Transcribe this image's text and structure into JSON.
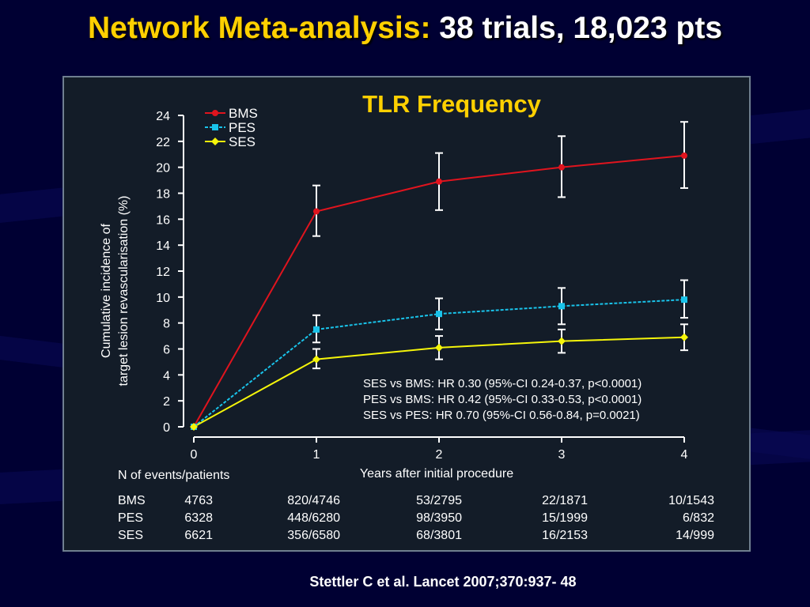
{
  "slide": {
    "title_main": "Network Meta-analysis:",
    "title_rest": "38 trials, 18,023 pts",
    "citation": "Stettler C et al. Lancet 2007;370:937- 48"
  },
  "colors": {
    "background": "#000033",
    "panel": "#131c28",
    "title_yellow": "#ffd000",
    "bms": "#e0141e",
    "pes": "#19c3ea",
    "ses": "#f5f50a",
    "error_bar": "#ffffff"
  },
  "chart_data": {
    "type": "line",
    "title": "TLR Frequency",
    "ylabel_line1": "Cumulative incidence of",
    "ylabel_line2": "target lesion revascularisation (%)",
    "xlabel": "Years after initial procedure",
    "x": [
      0,
      1,
      2,
      3,
      4
    ],
    "xticks": [
      "0",
      "1",
      "2",
      "3",
      "4"
    ],
    "yticks": [
      "0",
      "2",
      "4",
      "6",
      "8",
      "10",
      "12",
      "14",
      "16",
      "18",
      "20",
      "22",
      "24"
    ],
    "ylim": [
      0,
      24
    ],
    "xlim": [
      0,
      4
    ],
    "grid": false,
    "legend_position": "top-left",
    "series": [
      {
        "name": "BMS",
        "color_key": "bms",
        "dash": "solid",
        "marker": "circle",
        "values": [
          0,
          16.6,
          18.9,
          20.0,
          20.9
        ],
        "err_low": [
          null,
          14.7,
          16.7,
          17.7,
          18.4
        ],
        "err_high": [
          null,
          18.6,
          21.1,
          22.4,
          23.5
        ]
      },
      {
        "name": "PES",
        "color_key": "pes",
        "dash": "dashed",
        "marker": "square",
        "values": [
          0,
          7.5,
          8.7,
          9.3,
          9.8
        ],
        "err_low": [
          null,
          6.5,
          7.5,
          7.9,
          8.4
        ],
        "err_high": [
          null,
          8.6,
          9.9,
          10.7,
          11.3
        ]
      },
      {
        "name": "SES",
        "color_key": "ses",
        "dash": "solid",
        "marker": "diamond",
        "values": [
          0,
          5.2,
          6.1,
          6.6,
          6.9
        ],
        "err_low": [
          null,
          4.5,
          5.2,
          5.7,
          5.9
        ],
        "err_high": [
          null,
          6.0,
          7.0,
          7.5,
          7.9
        ]
      }
    ],
    "annotations": [
      "SES vs BMS: HR 0.30 (95%-CI 0.24-0.37, p<0.0001)",
      "PES vs BMS: HR 0.42 (95%-CI 0.33-0.53, p<0.0001)",
      "SES vs PES: HR 0.70 (95%-CI 0.56-0.84, p=0.0021)"
    ],
    "events_table": {
      "heading": "N of events/patients",
      "rows": [
        {
          "label": "BMS",
          "cells": [
            "4763",
            "820/4746",
            "53/2795",
            "22/1871",
            "10/1543"
          ]
        },
        {
          "label": "PES",
          "cells": [
            "6328",
            "448/6280",
            "98/3950",
            "15/1999",
            "6/832"
          ]
        },
        {
          "label": "SES",
          "cells": [
            "6621",
            "356/6580",
            "68/3801",
            "16/2153",
            "14/999"
          ]
        }
      ]
    }
  }
}
